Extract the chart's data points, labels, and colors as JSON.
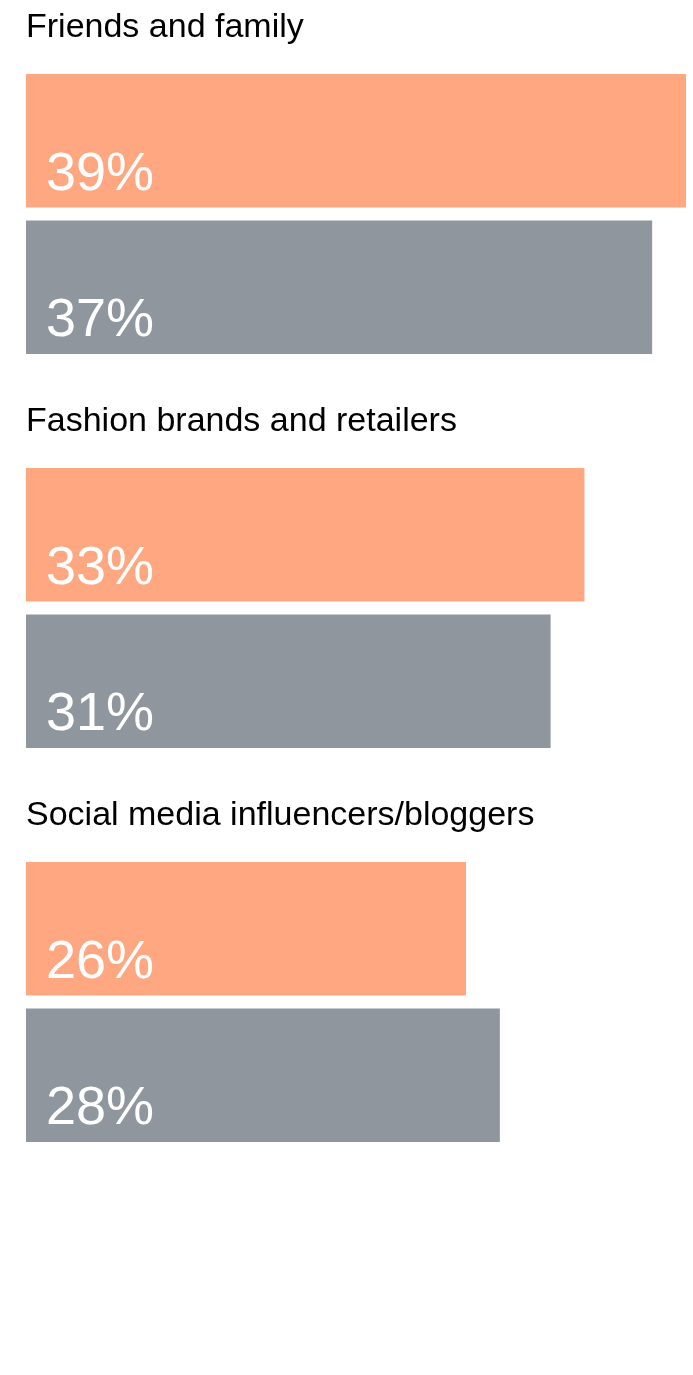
{
  "chart_data": {
    "type": "bar",
    "orientation": "horizontal",
    "categories": [
      "Friends and family",
      "Fashion brands and retailers",
      "Social media influencers/bloggers"
    ],
    "series": [
      {
        "color": "#ffa780",
        "values": [
          39,
          33,
          26
        ],
        "value_labels": [
          "39%",
          "33%",
          "26%"
        ]
      },
      {
        "color": "#90969d",
        "values": [
          37,
          31,
          28
        ],
        "value_labels": [
          "37%",
          "31%",
          "28%"
        ]
      }
    ]
  }
}
